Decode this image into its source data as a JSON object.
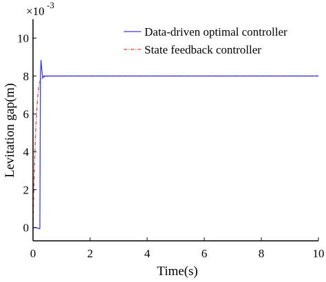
{
  "chart_data": {
    "type": "line",
    "xlabel": "Time(s)",
    "ylabel": "Levitation gap(m)",
    "exponent_base": "×10",
    "exponent_power": "-3",
    "xlim": [
      0,
      10
    ],
    "ylim": [
      -0.7,
      11
    ],
    "x_ticks": [
      0,
      2,
      4,
      6,
      8,
      10
    ],
    "y_ticks": [
      0,
      2,
      4,
      6,
      8,
      10
    ],
    "legend_position": "top-right",
    "grid": false,
    "series": [
      {
        "name": "Data-driven optimal controller",
        "color": "#3b3bd6",
        "style": "solid",
        "points": [
          [
            0,
            0.0
          ],
          [
            0.05,
            0.0
          ],
          [
            0.1,
            0.0
          ],
          [
            0.15,
            -0.02
          ],
          [
            0.2,
            -0.05
          ],
          [
            0.24,
            -0.05
          ],
          [
            0.25,
            4.0
          ],
          [
            0.26,
            8.0
          ],
          [
            0.28,
            8.85
          ],
          [
            0.31,
            8.3
          ],
          [
            0.34,
            7.9
          ],
          [
            0.38,
            8.0
          ],
          [
            0.5,
            8.0
          ],
          [
            2.0,
            8.0
          ],
          [
            5.0,
            8.0
          ],
          [
            8.0,
            8.0
          ],
          [
            10.0,
            8.0
          ]
        ]
      },
      {
        "name": "State feedback controller",
        "color": "#e0413a",
        "style": "dashdot",
        "points": [
          [
            0,
            0.0
          ],
          [
            0.02,
            1.5
          ],
          [
            0.05,
            3.2
          ],
          [
            0.08,
            4.6
          ],
          [
            0.12,
            5.9
          ],
          [
            0.16,
            6.8
          ],
          [
            0.2,
            7.4
          ],
          [
            0.25,
            7.75
          ],
          [
            0.3,
            7.9
          ],
          [
            0.4,
            7.97
          ],
          [
            0.6,
            8.0
          ],
          [
            2.0,
            8.0
          ],
          [
            5.0,
            8.0
          ],
          [
            8.0,
            8.0
          ],
          [
            10.0,
            8.0
          ]
        ]
      }
    ]
  }
}
